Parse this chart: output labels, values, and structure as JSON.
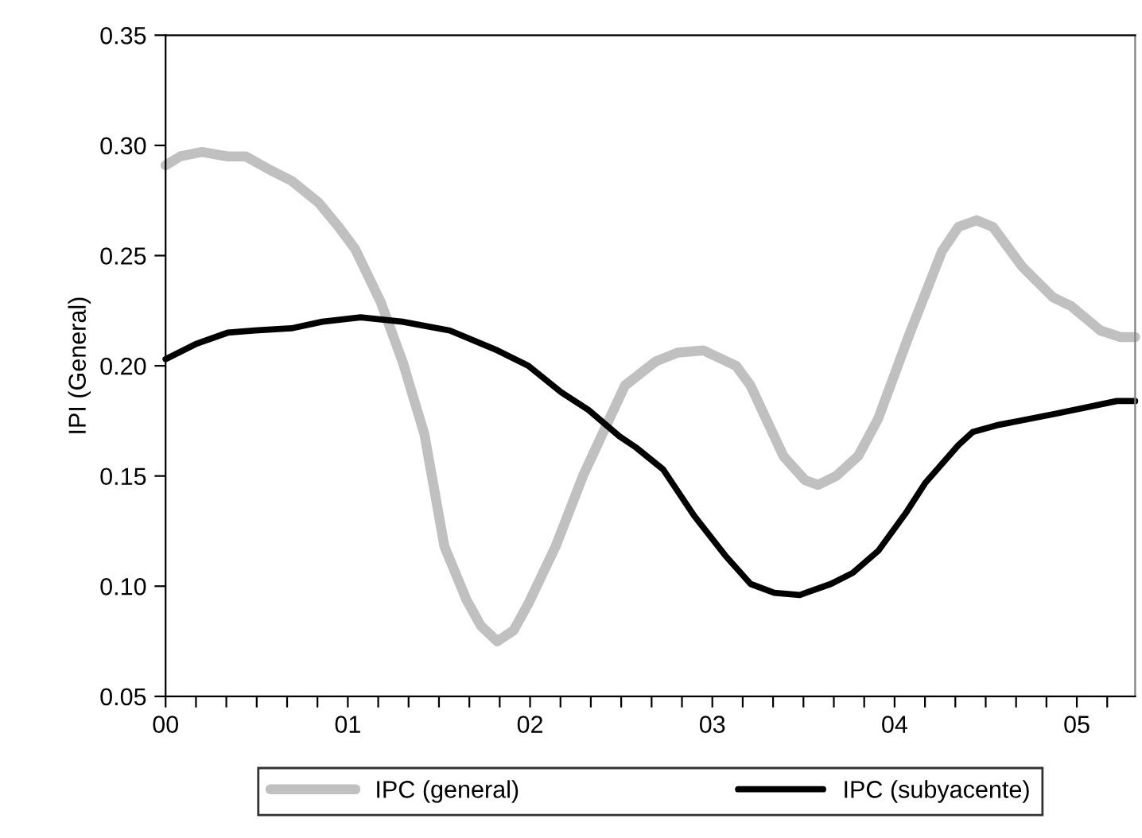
{
  "chart_data": {
    "type": "line",
    "ylabel": "IPI (General)",
    "xlim": [
      0,
      5.32
    ],
    "ylim": [
      0.05,
      0.35
    ],
    "yticks": [
      {
        "value": 0.05,
        "label": "0.05"
      },
      {
        "value": 0.1,
        "label": "0.10"
      },
      {
        "value": 0.15,
        "label": "0.15"
      },
      {
        "value": 0.2,
        "label": "0.20"
      },
      {
        "value": 0.25,
        "label": "0.25"
      },
      {
        "value": 0.3,
        "label": "0.30"
      },
      {
        "value": 0.35,
        "label": "0.35"
      }
    ],
    "xticks": [
      {
        "value": 0,
        "label": "00"
      },
      {
        "value": 1,
        "label": "01"
      },
      {
        "value": 2,
        "label": "02"
      },
      {
        "value": 3,
        "label": "03"
      },
      {
        "value": 4,
        "label": "04"
      },
      {
        "value": 5,
        "label": "05"
      },
      {
        "value": 0.1667,
        "label": null
      },
      {
        "value": 0.3333,
        "label": null
      },
      {
        "value": 0.5,
        "label": null
      },
      {
        "value": 0.6667,
        "label": null
      },
      {
        "value": 0.8333,
        "label": null
      },
      {
        "value": 1.1667,
        "label": null
      },
      {
        "value": 1.3333,
        "label": null
      },
      {
        "value": 1.5,
        "label": null
      },
      {
        "value": 1.6667,
        "label": null
      },
      {
        "value": 1.8333,
        "label": null
      },
      {
        "value": 2.1667,
        "label": null
      },
      {
        "value": 2.3333,
        "label": null
      },
      {
        "value": 2.5,
        "label": null
      },
      {
        "value": 2.6667,
        "label": null
      },
      {
        "value": 2.8333,
        "label": null
      },
      {
        "value": 3.1667,
        "label": null
      },
      {
        "value": 3.3333,
        "label": null
      },
      {
        "value": 3.5,
        "label": null
      },
      {
        "value": 3.6667,
        "label": null
      },
      {
        "value": 3.8333,
        "label": null
      },
      {
        "value": 4.1667,
        "label": null
      },
      {
        "value": 4.3333,
        "label": null
      },
      {
        "value": 4.5,
        "label": null
      },
      {
        "value": 4.6667,
        "label": null
      },
      {
        "value": 4.8333,
        "label": null
      },
      {
        "value": 5.1667,
        "label": null
      }
    ],
    "grid": false,
    "legend": "bottom",
    "marker": "none",
    "line_style": "solid",
    "series": [
      {
        "name": "IPC (general)",
        "color": "#c0c0c0",
        "x": [
          0,
          0.08,
          0.2,
          0.34,
          0.44,
          0.57,
          0.69,
          0.84,
          0.95,
          1.04,
          1.18,
          1.3,
          1.42,
          1.53,
          1.65,
          1.73,
          1.82,
          1.91,
          1.99,
          2.14,
          2.29,
          2.52,
          2.69,
          2.81,
          2.95,
          3.13,
          3.21,
          3.39,
          3.51,
          3.58,
          3.68,
          3.8,
          3.91,
          4.08,
          4.26,
          4.35,
          4.45,
          4.54,
          4.7,
          4.87,
          4.97,
          5.13,
          5.24,
          5.32
        ],
        "values": [
          0.291,
          0.295,
          0.297,
          0.295,
          0.295,
          0.289,
          0.284,
          0.274,
          0.263,
          0.253,
          0.229,
          0.202,
          0.169,
          0.118,
          0.094,
          0.082,
          0.075,
          0.08,
          0.092,
          0.118,
          0.15,
          0.191,
          0.202,
          0.206,
          0.207,
          0.2,
          0.191,
          0.159,
          0.148,
          0.146,
          0.15,
          0.159,
          0.176,
          0.214,
          0.252,
          0.263,
          0.266,
          0.263,
          0.245,
          0.231,
          0.227,
          0.216,
          0.213,
          0.213
        ]
      },
      {
        "name": "IPC (subyacente)",
        "color": "#000000",
        "x": [
          0,
          0.17,
          0.34,
          0.49,
          0.69,
          0.86,
          1.07,
          1.3,
          1.56,
          1.82,
          1.99,
          2.17,
          2.32,
          2.49,
          2.58,
          2.73,
          2.9,
          3.07,
          3.21,
          3.34,
          3.48,
          3.65,
          3.77,
          3.91,
          4.06,
          4.17,
          4.35,
          4.43,
          4.56,
          4.87,
          5.22,
          5.32
        ],
        "values": [
          0.203,
          0.21,
          0.215,
          0.216,
          0.217,
          0.22,
          0.222,
          0.22,
          0.216,
          0.207,
          0.2,
          0.188,
          0.18,
          0.168,
          0.163,
          0.153,
          0.132,
          0.114,
          0.101,
          0.097,
          0.096,
          0.101,
          0.106,
          0.116,
          0.133,
          0.147,
          0.164,
          0.17,
          0.173,
          0.178,
          0.184,
          0.184
        ]
      }
    ]
  }
}
